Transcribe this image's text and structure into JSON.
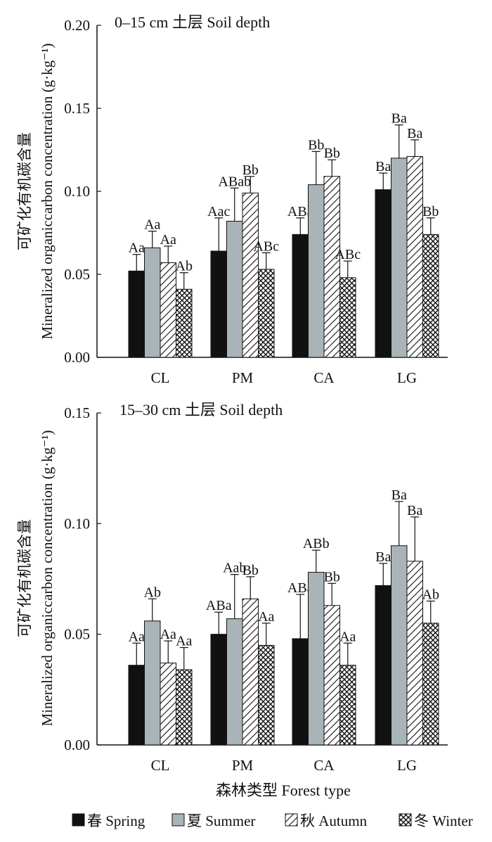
{
  "chart_data": [
    {
      "type": "bar",
      "title": "0–15 cm 土层 Soil depth",
      "ylabel_cn": "可矿化有机碳含量",
      "ylabel_en": "Mineralized organiccarbon concentration (g·kg⁻¹)",
      "ylim": [
        0,
        0.2
      ],
      "yticks": [
        "0.00",
        "0.05",
        "0.10",
        "0.15",
        "0.20"
      ],
      "categories": [
        "CL",
        "PM",
        "CA",
        "LG"
      ],
      "series": [
        {
          "name": "春 Spring",
          "values": [
            0.052,
            0.064,
            0.074,
            0.101
          ],
          "errors": [
            0.01,
            0.02,
            0.01,
            0.01
          ],
          "labels": [
            "Aa",
            "Aac",
            "ABa",
            "Ba"
          ]
        },
        {
          "name": "夏 Summer",
          "values": [
            0.066,
            0.082,
            0.104,
            0.12
          ],
          "errors": [
            0.01,
            0.02,
            0.02,
            0.02
          ],
          "labels": [
            "Aa",
            "ABab",
            "Bb",
            "Ba"
          ]
        },
        {
          "name": "秋 Autumn",
          "values": [
            0.057,
            0.099,
            0.109,
            0.121
          ],
          "errors": [
            0.01,
            0.01,
            0.01,
            0.01
          ],
          "labels": [
            "Aa",
            "Bb",
            "Bb",
            "Ba"
          ]
        },
        {
          "name": "冬 Winter",
          "values": [
            0.041,
            0.053,
            0.048,
            0.074
          ],
          "errors": [
            0.01,
            0.01,
            0.01,
            0.01
          ],
          "labels": [
            "Ab",
            "ABc",
            "ABc",
            "Bb"
          ]
        }
      ]
    },
    {
      "type": "bar",
      "title": "15–30 cm 土层 Soil depth",
      "ylabel_cn": "可矿化有机碳含量",
      "ylabel_en": "Mineralized organiccarbon concentration (g·kg⁻¹)",
      "xlabel": "森林类型 Forest type",
      "ylim": [
        0,
        0.15
      ],
      "yticks": [
        "0.00",
        "0.05",
        "0.10",
        "0.15"
      ],
      "categories": [
        "CL",
        "PM",
        "CA",
        "LG"
      ],
      "series": [
        {
          "name": "春 Spring",
          "values": [
            0.036,
            0.05,
            0.048,
            0.072
          ],
          "errors": [
            0.01,
            0.01,
            0.02,
            0.01
          ],
          "labels": [
            "Aa",
            "ABa",
            "ABa",
            "Ba"
          ]
        },
        {
          "name": "夏 Summer",
          "values": [
            0.056,
            0.057,
            0.078,
            0.09
          ],
          "errors": [
            0.01,
            0.02,
            0.01,
            0.02
          ],
          "labels": [
            "Ab",
            "Aab",
            "ABb",
            "Ba"
          ]
        },
        {
          "name": "秋 Autumn",
          "values": [
            0.037,
            0.066,
            0.063,
            0.083
          ],
          "errors": [
            0.01,
            0.01,
            0.01,
            0.02
          ],
          "labels": [
            "Aa",
            "Bb",
            "Bb",
            "Ba"
          ]
        },
        {
          "name": "冬 Winter",
          "values": [
            0.034,
            0.045,
            0.036,
            0.055
          ],
          "errors": [
            0.01,
            0.01,
            0.01,
            0.01
          ],
          "labels": [
            "Aa",
            "Aa",
            "Aa",
            "Ab"
          ]
        }
      ]
    }
  ],
  "legend": [
    {
      "label": "春 Spring",
      "pattern": "solid-black"
    },
    {
      "label": "夏 Summer",
      "pattern": "solid-gray"
    },
    {
      "label": "秋 Autumn",
      "pattern": "diagonal-hatch"
    },
    {
      "label": "冬 Winter",
      "pattern": "crosshatch"
    }
  ],
  "colors": {
    "spring": "#111111",
    "summer": "#a9b4b8",
    "autumn": "#ffffff",
    "winter": "#ffffff",
    "axis": "#111111"
  }
}
